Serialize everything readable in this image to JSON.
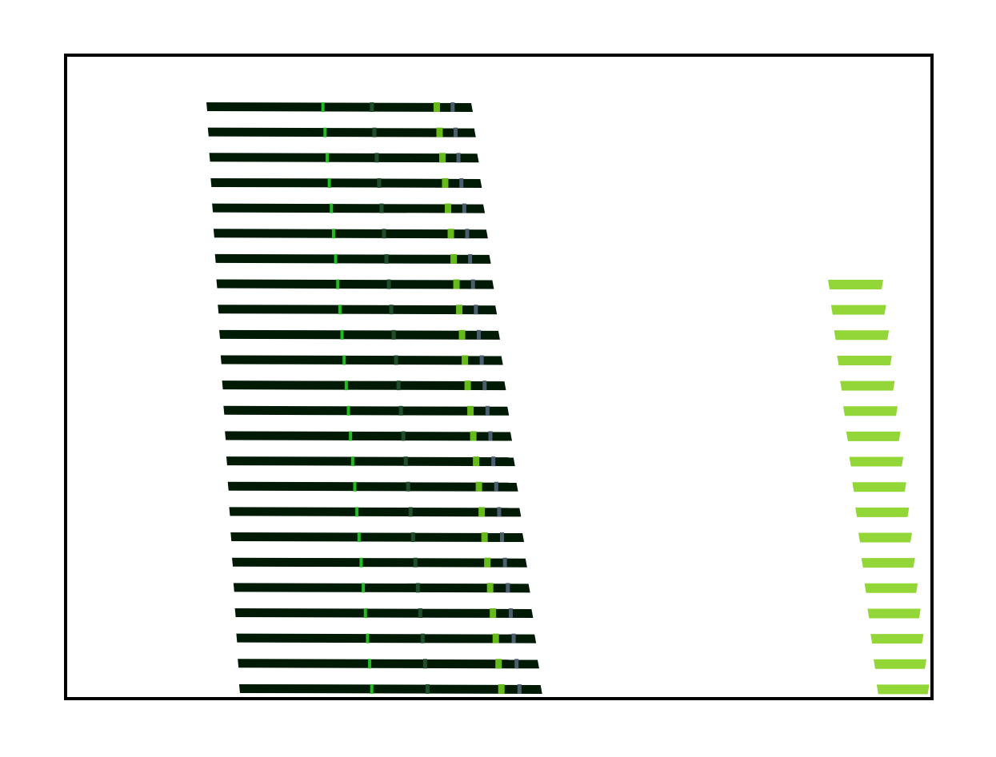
{
  "colors": {
    "background": "#ffffff",
    "frame": "#000000",
    "dark_bar": "#001a06",
    "tick_bright_green": "#22bb22",
    "tick_dark_green": "#1f4d2a",
    "tick_yellow_green": "#66bb1a",
    "tick_slate": "#4a5e6e",
    "light_bar": "#93d638"
  },
  "left_group": {
    "bar_count": 24,
    "tick_marks": [
      "bright-green",
      "dark-green",
      "yellow-green",
      "slate"
    ]
  },
  "right_group": {
    "bar_count": 17
  }
}
